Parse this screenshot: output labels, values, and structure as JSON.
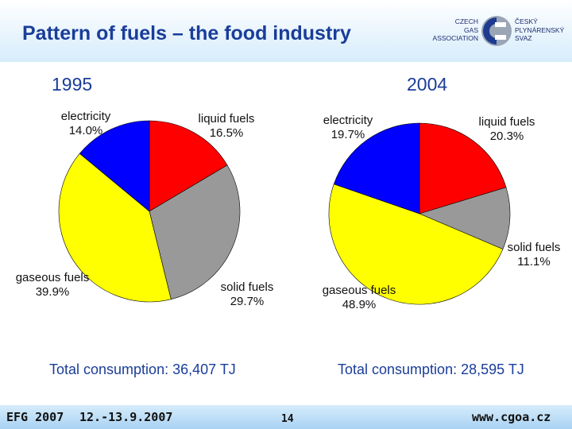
{
  "header": {
    "title": "Pattern of fuels – the food industry",
    "logo": {
      "left_lines": [
        "CZECH",
        "GAS",
        "ASSOCIATION"
      ],
      "right_lines": [
        "ČESKÝ",
        "PLYNÁRENSKÝ",
        "SVAZ"
      ],
      "colors": {
        "blue": "#1e3b8f",
        "grey": "#9aa6b5"
      }
    }
  },
  "chart_data": [
    {
      "type": "pie",
      "title": "1995",
      "slices": [
        {
          "name": "liquid fuels",
          "value": 16.5,
          "label": "liquid fuels",
          "pct": "16.5%",
          "color": "#ff0000"
        },
        {
          "name": "solid fuels",
          "value": 29.7,
          "label": "solid fuels",
          "pct": "29.7%",
          "color": "#999999"
        },
        {
          "name": "gaseous fuels",
          "value": 39.9,
          "label": "gaseous fuels",
          "pct": "39.9%",
          "color": "#ffff00"
        },
        {
          "name": "electricity",
          "value": 14.0,
          "label": "electricity",
          "pct": "14.0%",
          "color": "#0000ff"
        }
      ],
      "total": "Total consumption: 36,407 TJ"
    },
    {
      "type": "pie",
      "title": "2004",
      "slices": [
        {
          "name": "liquid fuels",
          "value": 20.3,
          "label": "liquid fuels",
          "pct": "20.3%",
          "color": "#ff0000"
        },
        {
          "name": "solid fuels",
          "value": 11.1,
          "label": "solid fuels",
          "pct": "11.1%",
          "color": "#999999"
        },
        {
          "name": "gaseous fuels",
          "value": 48.9,
          "label": "gaseous fuels",
          "pct": "48.9%",
          "color": "#ffff00"
        },
        {
          "name": "electricity",
          "value": 19.7,
          "label": "electricity",
          "pct": "19.7%",
          "color": "#0000ff"
        }
      ],
      "total": "Total consumption: 28,595 TJ"
    }
  ],
  "footer": {
    "event": "EFG 2007",
    "dates": "12.-13.9.2007",
    "page": "14",
    "url": "www.cgoa.cz"
  }
}
